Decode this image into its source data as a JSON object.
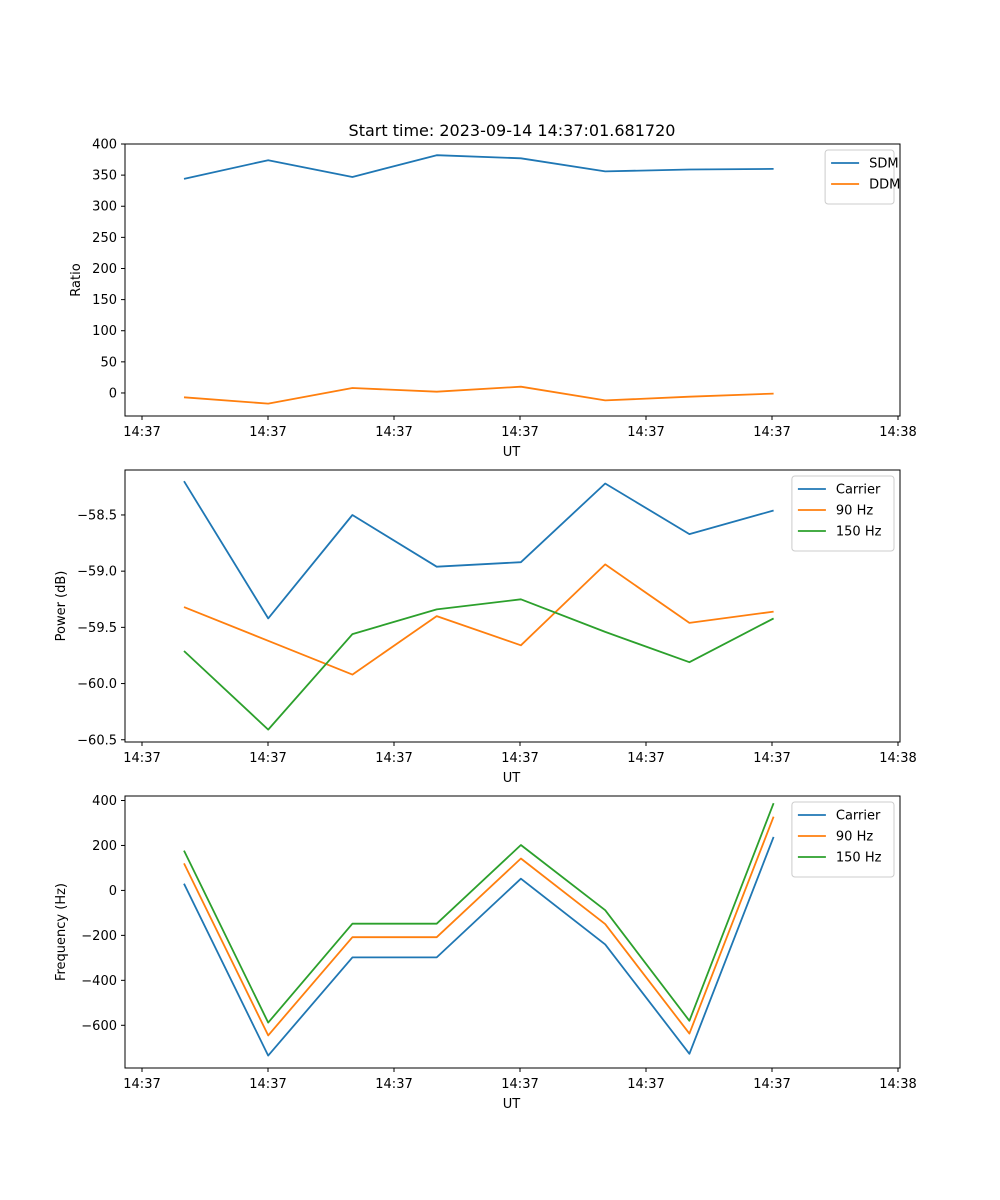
{
  "title": "Start time: 2023-09-14 14:37:01.681720",
  "chart_data": [
    {
      "type": "line",
      "xlabel": "UT",
      "ylabel": "Ratio",
      "x_tick_labels": [
        "14:37",
        "14:37",
        "14:37",
        "14:37",
        "14:37",
        "14:37",
        "14:37",
        "14:38"
      ],
      "x": [
        1,
        2,
        3,
        4,
        5,
        6,
        7,
        8
      ],
      "xlim": [
        0.3,
        9.5
      ],
      "ylim": [
        -37,
        400
      ],
      "yticks": [
        0,
        50,
        100,
        150,
        200,
        250,
        300,
        350,
        400
      ],
      "yticklabels": [
        "0",
        "50",
        "100",
        "150",
        "200",
        "250",
        "300",
        "350",
        "400"
      ],
      "legend_position": "top-right",
      "series": [
        {
          "name": "SDM",
          "color": "#1f77b4",
          "values": [
            344,
            374,
            347,
            382,
            377,
            356,
            359,
            360
          ]
        },
        {
          "name": "DDM",
          "color": "#ff7f0e",
          "values": [
            -7,
            -17,
            8,
            2,
            10,
            -12,
            -6,
            -1
          ]
        }
      ]
    },
    {
      "type": "line",
      "xlabel": "UT",
      "ylabel": "Power (dB)",
      "x_tick_labels": [
        "14:37",
        "14:37",
        "14:37",
        "14:37",
        "14:37",
        "14:37",
        "14:37",
        "14:38"
      ],
      "x": [
        1,
        2,
        3,
        4,
        5,
        6,
        7,
        8
      ],
      "xlim": [
        0.3,
        9.5
      ],
      "ylim": [
        -60.52,
        -58.1
      ],
      "yticks": [
        -58.5,
        -59.0,
        -59.5,
        -60.0,
        -60.5
      ],
      "yticklabels": [
        "−58.5",
        "−59.0",
        "−59.5",
        "−60.0",
        "−60.5"
      ],
      "legend_position": "top-right",
      "series": [
        {
          "name": "Carrier",
          "color": "#1f77b4",
          "values": [
            -58.2,
            -59.42,
            -58.5,
            -58.96,
            -58.92,
            -58.22,
            -58.67,
            -58.46
          ]
        },
        {
          "name": "90 Hz",
          "color": "#ff7f0e",
          "values": [
            -59.32,
            -59.62,
            -59.92,
            -59.4,
            -59.66,
            -58.94,
            -59.46,
            -59.36
          ]
        },
        {
          "name": "150 Hz",
          "color": "#2ca02c",
          "values": [
            -59.71,
            -60.41,
            -59.56,
            -59.34,
            -59.25,
            -59.54,
            -59.81,
            -59.42
          ]
        }
      ]
    },
    {
      "type": "line",
      "xlabel": "UT",
      "ylabel": "Frequency (Hz)",
      "x_tick_labels": [
        "14:37",
        "14:37",
        "14:37",
        "14:37",
        "14:37",
        "14:37",
        "14:37",
        "14:38"
      ],
      "x": [
        1,
        2,
        3,
        4,
        5,
        6,
        7,
        8
      ],
      "xlim": [
        0.3,
        9.5
      ],
      "ylim": [
        -790,
        420
      ],
      "yticks": [
        400,
        200,
        0,
        -200,
        -400,
        -600
      ],
      "yticklabels": [
        "400",
        "200",
        "0",
        "−200",
        "−400",
        "−600"
      ],
      "legend_position": "top-right",
      "series": [
        {
          "name": "Carrier",
          "color": "#1f77b4",
          "values": [
            30,
            -735,
            -298,
            -298,
            52,
            -240,
            -727,
            238
          ]
        },
        {
          "name": "90 Hz",
          "color": "#ff7f0e",
          "values": [
            120,
            -645,
            -208,
            -208,
            142,
            -150,
            -637,
            328
          ]
        },
        {
          "name": "150 Hz",
          "color": "#2ca02c",
          "values": [
            177,
            -588,
            -148,
            -148,
            202,
            -88,
            -580,
            388
          ]
        }
      ]
    }
  ]
}
